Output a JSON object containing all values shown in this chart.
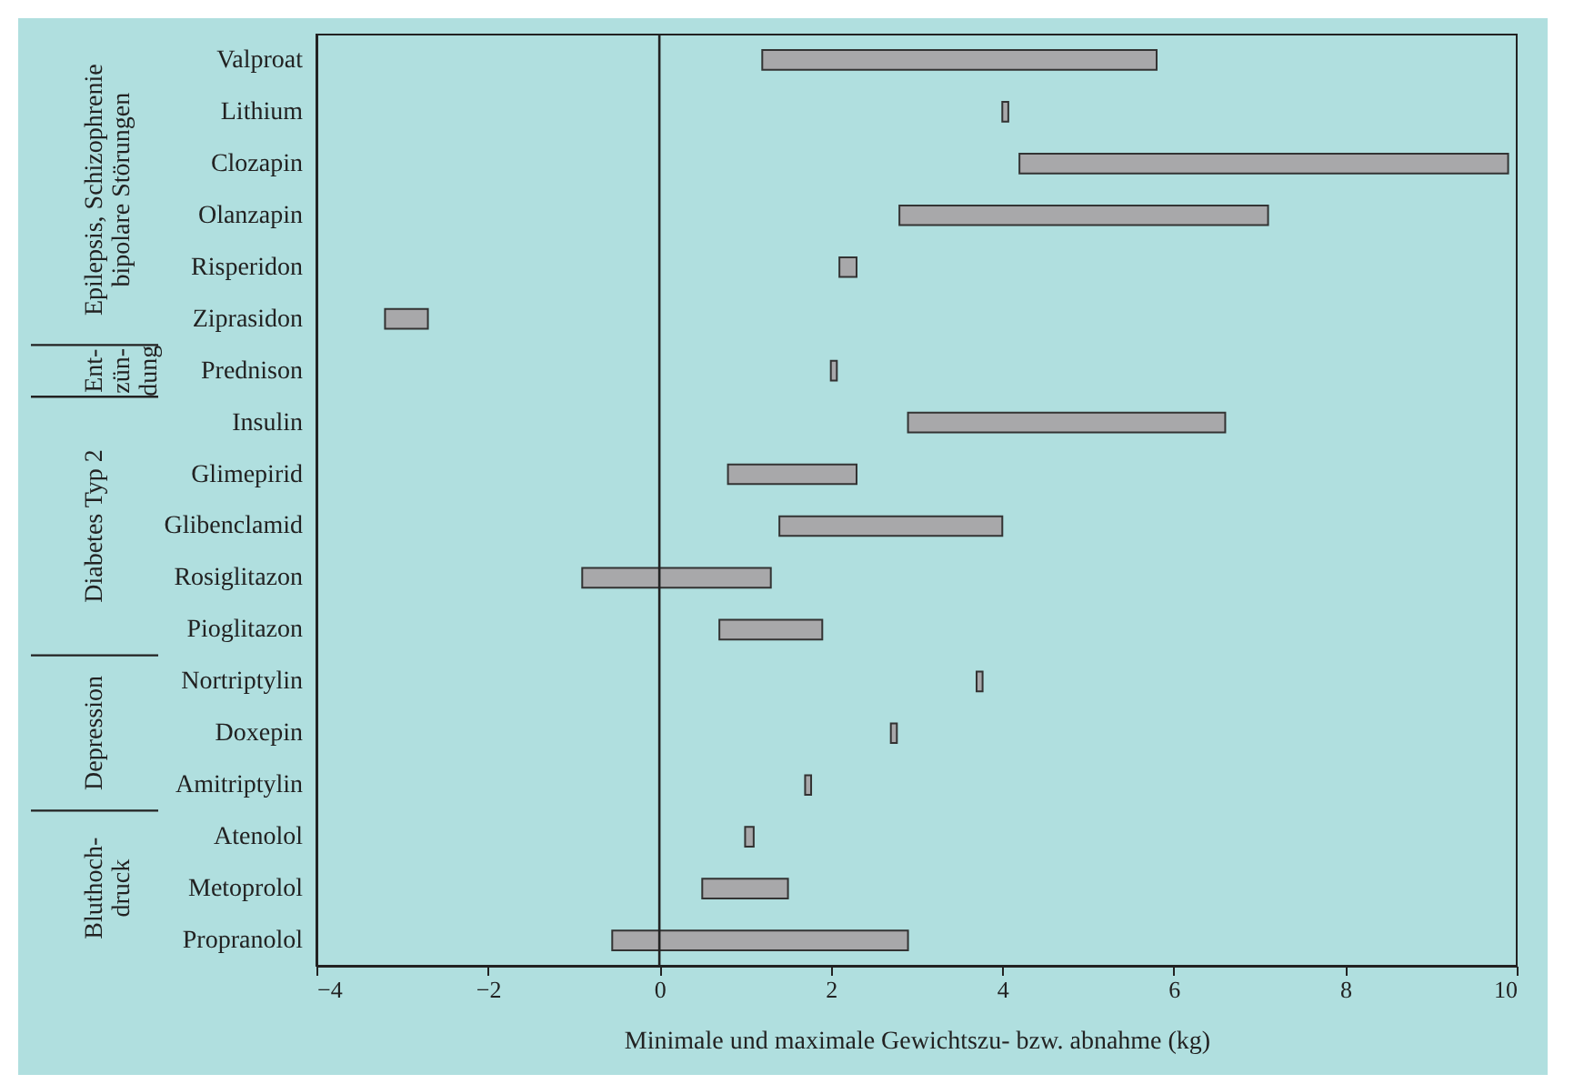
{
  "chart_data": {
    "type": "bar",
    "orientation": "horizontal",
    "xlabel": "Minimale und maximale Gewichtszu- bzw. abnahme (kg)",
    "categories": [
      "Valproat",
      "Lithium",
      "Clozapin",
      "Olanzapin",
      "Risperidon",
      "Ziprasidon",
      "Prednison",
      "Insulin",
      "Glimepirid",
      "Glibenclamid",
      "Rosiglitazon",
      "Pioglitazon",
      "Nortriptylin",
      "Doxepin",
      "Amitriptylin",
      "Atenolol",
      "Metoprolol",
      "Propranolol"
    ],
    "base": [
      1.2,
      4.0,
      4.2,
      2.8,
      2.1,
      -3.2,
      2.0,
      2.9,
      0.8,
      1.4,
      -0.9,
      0.7,
      3.7,
      2.7,
      1.7,
      1.0,
      0.5,
      -0.55
    ],
    "values": [
      4.6,
      0.07,
      5.7,
      4.3,
      0.2,
      0.5,
      0.07,
      3.7,
      1.5,
      2.6,
      2.2,
      1.2,
      0.07,
      0.07,
      0.07,
      0.1,
      1.0,
      3.45
    ],
    "color": "#a8a8aa",
    "xlim": [
      -4,
      10
    ],
    "xticks": [
      -4,
      -2,
      0,
      2,
      4,
      6,
      8,
      10
    ],
    "grid": false,
    "ref_lines": [
      {
        "axis": "x",
        "value": 0,
        "color": "#222222"
      }
    ],
    "annotations": [
      "Epilepsis, Schizophrenie\nbipolare Störungen",
      "Ent-\nzün-\ndung",
      "Diabetes Typ 2",
      "Depression",
      "Bluthoch-\ndruck"
    ]
  }
}
